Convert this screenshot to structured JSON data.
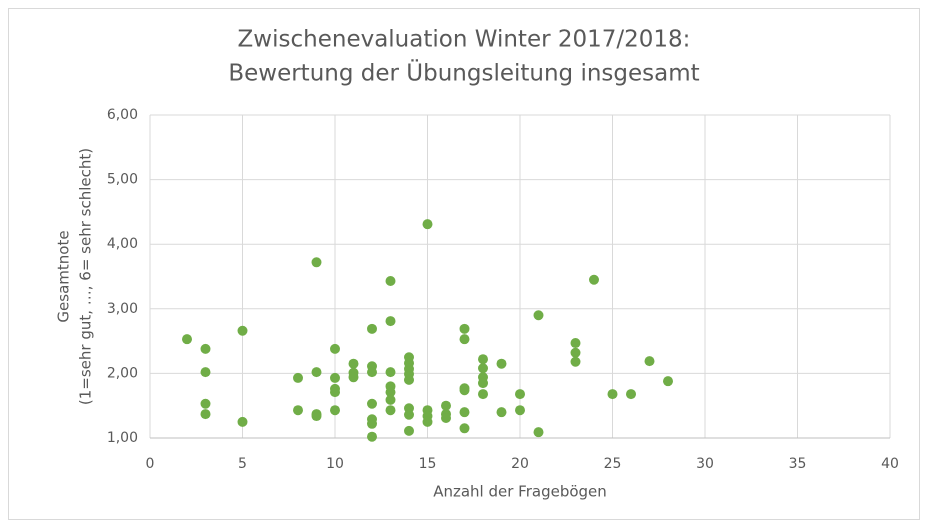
{
  "chart_data": {
    "type": "scatter",
    "title": [
      "Zwischenevaluation Winter 2017/2018:",
      "Bewertung der Übungsleitung insgesamt"
    ],
    "x_label": "Anzahl der Fragebögen",
    "y_label": [
      "Gesamtnote",
      "(1=sehr gut, …, 6= sehr schlecht)"
    ],
    "color": "#70ad47",
    "grid": true,
    "xlim": [
      0,
      40
    ],
    "xticks": [
      0,
      5,
      10,
      15,
      20,
      25,
      30,
      35,
      40
    ],
    "ylim": [
      1,
      6
    ],
    "yticks": [
      {
        "value": 1,
        "label": "1,00"
      },
      {
        "value": 2,
        "label": "2,00"
      },
      {
        "value": 3,
        "label": "3,00"
      },
      {
        "value": 4,
        "label": "4,00"
      },
      {
        "value": 5,
        "label": "5,00"
      },
      {
        "value": 6,
        "label": "6,00"
      }
    ],
    "x": [
      2,
      3,
      3,
      3,
      3,
      5,
      5,
      8,
      8,
      9,
      9,
      9,
      9,
      10,
      10,
      10,
      10,
      10,
      11,
      11,
      11,
      12,
      12,
      12,
      12,
      12,
      12,
      12,
      13,
      13,
      13,
      13,
      13,
      13,
      13,
      14,
      14,
      14,
      14,
      14,
      14,
      14,
      14,
      15,
      15,
      15,
      15,
      16,
      16,
      16,
      17,
      17,
      17,
      17,
      17,
      17,
      18,
      18,
      18,
      18,
      18,
      19,
      19,
      20,
      20,
      21,
      21,
      23,
      23,
      23,
      24,
      25,
      26,
      27,
      28
    ],
    "values": [
      2.53,
      2.38,
      2.02,
      1.53,
      1.37,
      2.66,
      1.25,
      1.93,
      1.43,
      3.72,
      2.02,
      1.37,
      1.34,
      2.38,
      1.93,
      1.76,
      1.71,
      1.43,
      2.15,
      2.01,
      1.94,
      2.69,
      2.11,
      2.02,
      1.53,
      1.29,
      1.22,
      1.02,
      3.43,
      2.81,
      2.02,
      1.8,
      1.71,
      1.59,
      1.43,
      2.25,
      2.16,
      2.07,
      1.99,
      1.9,
      1.46,
      1.36,
      1.11,
      4.31,
      1.43,
      1.34,
      1.25,
      1.5,
      1.37,
      1.31,
      2.69,
      2.53,
      1.77,
      1.74,
      1.4,
      1.15,
      2.22,
      2.08,
      1.94,
      1.85,
      1.68,
      2.15,
      1.4,
      1.68,
      1.43,
      2.9,
      1.09,
      2.47,
      2.32,
      2.18,
      3.45,
      1.68,
      1.68,
      2.19,
      1.88
    ]
  }
}
